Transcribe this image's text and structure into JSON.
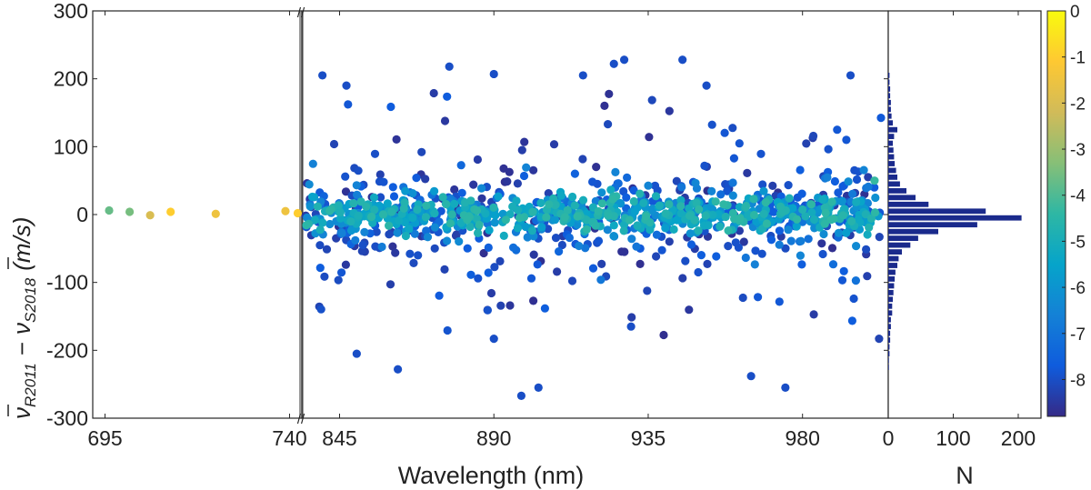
{
  "chart_data": {
    "type": "scatter",
    "title": "",
    "xlabel": "Wavelength (nm)",
    "ylabel_parts": {
      "nu": "ν",
      "sub1": "R2011",
      "minus": "−",
      "sub2": "S2018",
      "unit": "(m/s)"
    },
    "ylim": [
      -300,
      300
    ],
    "yticks": [
      "300",
      "200",
      "100",
      "0",
      "-100",
      "-200",
      "-300"
    ],
    "ytick_values": [
      300,
      200,
      100,
      0,
      -100,
      -200,
      -300
    ],
    "left_segment": {
      "xlim": [
        692,
        743
      ],
      "xticks": [
        695,
        740
      ],
      "xtick_labels": [
        "695",
        "740"
      ]
    },
    "right_segment": {
      "xlim": [
        834,
        1005
      ],
      "xticks": [
        845,
        890,
        935,
        980
      ],
      "xtick_labels": [
        "845",
        "890",
        "935",
        "980"
      ]
    },
    "axis_break": "//",
    "color_field": "log-scaled intensity (colorbar)",
    "colorbar": {
      "range": [
        -8.8,
        0
      ],
      "ticks": [
        "0",
        "-1",
        "-2",
        "-3",
        "-4",
        "-5",
        "-6",
        "-7",
        "-8"
      ],
      "tick_values": [
        0,
        -1,
        -2,
        -3,
        -4,
        -5,
        -6,
        -7,
        -8
      ]
    },
    "series_left": [
      {
        "x": 696,
        "y": 6,
        "c": -3.7
      },
      {
        "x": 701,
        "y": 4,
        "c": -3.5
      },
      {
        "x": 706,
        "y": -1,
        "c": -2.0
      },
      {
        "x": 711,
        "y": 4,
        "c": -1.0
      },
      {
        "x": 722,
        "y": 1,
        "c": -1.5
      },
      {
        "x": 739,
        "y": 5,
        "c": -1.5
      },
      {
        "x": 742,
        "y": 2,
        "c": -1.0
      }
    ],
    "series_right_summary": "About 1200 scattered lines between 835 and 1003 nm; most lie within ±50 m/s (colour -4 to -6), weaker lines (colour -7 to -8.5) spread to ±270 m/s.",
    "series_right_outliers": [
      {
        "x": 840,
        "y": 205,
        "c": -8
      },
      {
        "x": 847,
        "y": 190,
        "c": -8
      },
      {
        "x": 850,
        "y": -205,
        "c": -8
      },
      {
        "x": 862,
        "y": -228,
        "c": -8
      },
      {
        "x": 877,
        "y": 218,
        "c": -8
      },
      {
        "x": 890,
        "y": 207,
        "c": -8
      },
      {
        "x": 890,
        "y": -183,
        "c": -8
      },
      {
        "x": 898,
        "y": -267,
        "c": -8
      },
      {
        "x": 903,
        "y": -255,
        "c": -8
      },
      {
        "x": 916,
        "y": 205,
        "c": -8
      },
      {
        "x": 925,
        "y": 222,
        "c": -8
      },
      {
        "x": 928,
        "y": 228,
        "c": -8
      },
      {
        "x": 930,
        "y": -165,
        "c": -8
      },
      {
        "x": 945,
        "y": 228,
        "c": -8
      },
      {
        "x": 952,
        "y": 190,
        "c": -8
      },
      {
        "x": 965,
        "y": -238,
        "c": -8
      },
      {
        "x": 975,
        "y": -255,
        "c": -8
      },
      {
        "x": 994,
        "y": 205,
        "c": -8
      },
      {
        "x": 1001,
        "y": 50,
        "c": -4.3
      }
    ],
    "histogram": {
      "xlabel": "N",
      "xlim": [
        0,
        235
      ],
      "xticks": [
        0,
        100,
        200
      ],
      "xtick_labels": [
        "0",
        "100",
        "200"
      ],
      "bin_width": 10,
      "bins": [
        {
          "y": -225,
          "n": 1
        },
        {
          "y": -215,
          "n": 1
        },
        {
          "y": -205,
          "n": 2
        },
        {
          "y": -195,
          "n": 2
        },
        {
          "y": -185,
          "n": 3
        },
        {
          "y": -175,
          "n": 3
        },
        {
          "y": -165,
          "n": 4
        },
        {
          "y": -155,
          "n": 4
        },
        {
          "y": -145,
          "n": 6
        },
        {
          "y": -135,
          "n": 6
        },
        {
          "y": -125,
          "n": 7
        },
        {
          "y": -115,
          "n": 8
        },
        {
          "y": -105,
          "n": 9
        },
        {
          "y": -95,
          "n": 10
        },
        {
          "y": -85,
          "n": 11
        },
        {
          "y": -75,
          "n": 14
        },
        {
          "y": -65,
          "n": 16
        },
        {
          "y": -55,
          "n": 21
        },
        {
          "y": -45,
          "n": 34
        },
        {
          "y": -35,
          "n": 46
        },
        {
          "y": -25,
          "n": 77
        },
        {
          "y": -15,
          "n": 137
        },
        {
          "y": -5,
          "n": 205
        },
        {
          "y": 5,
          "n": 150
        },
        {
          "y": 15,
          "n": 62
        },
        {
          "y": 25,
          "n": 42
        },
        {
          "y": 35,
          "n": 28
        },
        {
          "y": 45,
          "n": 18
        },
        {
          "y": 55,
          "n": 14
        },
        {
          "y": 65,
          "n": 12
        },
        {
          "y": 75,
          "n": 10
        },
        {
          "y": 85,
          "n": 9
        },
        {
          "y": 95,
          "n": 8
        },
        {
          "y": 105,
          "n": 7
        },
        {
          "y": 115,
          "n": 9
        },
        {
          "y": 125,
          "n": 14
        },
        {
          "y": 135,
          "n": 7
        },
        {
          "y": 145,
          "n": 5
        },
        {
          "y": 155,
          "n": 4
        },
        {
          "y": 165,
          "n": 4
        },
        {
          "y": 175,
          "n": 3
        },
        {
          "y": 185,
          "n": 3
        },
        {
          "y": 195,
          "n": 2
        },
        {
          "y": 205,
          "n": 2
        }
      ]
    }
  }
}
